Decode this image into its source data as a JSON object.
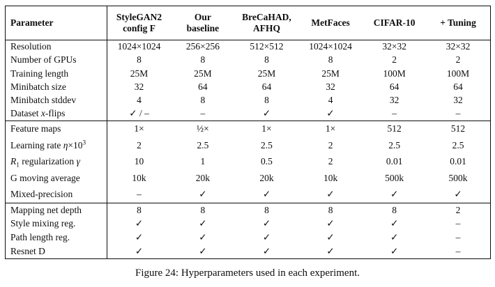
{
  "page": {
    "background": "#ffffff",
    "text_color": "#0d0d0d",
    "rule_color": "#0d0d0d"
  },
  "table": {
    "header": {
      "param_label": "Parameter",
      "columns": [
        "StyleGAN2\nconfig F",
        "Our\nbaseline",
        "BreCaHAD,\nAFHQ",
        "MetFaces",
        "CIFAR-10",
        "+ Tuning"
      ]
    },
    "sections": [
      {
        "rows": [
          {
            "param": "Resolution",
            "values": [
              "1024×1024",
              "256×256",
              "512×512",
              "1024×1024",
              "32×32",
              "32×32"
            ]
          },
          {
            "param": "Number of GPUs",
            "values": [
              "8",
              "8",
              "8",
              "8",
              "2",
              "2"
            ]
          },
          {
            "param": "Training length",
            "values": [
              "25M",
              "25M",
              "25M",
              "25M",
              "100M",
              "100M"
            ]
          },
          {
            "param": "Minibatch size",
            "values": [
              "32",
              "64",
              "64",
              "32",
              "64",
              "64"
            ]
          },
          {
            "param": "Minibatch stddev",
            "values": [
              "4",
              "8",
              "8",
              "4",
              "32",
              "32"
            ]
          },
          {
            "param": "Dataset x-flips",
            "param_parts": [
              {
                "t": "Dataset "
              },
              {
                "t": "x",
                "i": true
              },
              {
                "t": "-flips"
              }
            ],
            "values": [
              "✓ / –",
              "–",
              "✓",
              "✓",
              "–",
              "–"
            ]
          }
        ]
      },
      {
        "rows": [
          {
            "param": "Feature maps",
            "values": [
              "1×",
              "½×",
              "1×",
              "1×",
              "512",
              "512"
            ]
          },
          {
            "param": "Learning rate η×10³",
            "param_parts": [
              {
                "t": "Learning rate "
              },
              {
                "t": "η",
                "i": true
              },
              {
                "t": "×10"
              },
              {
                "t": "3",
                "sup": true
              }
            ],
            "values": [
              "2",
              "2.5",
              "2.5",
              "2",
              "2.5",
              "2.5"
            ]
          },
          {
            "param": "R₁ regularization γ",
            "param_parts": [
              {
                "t": "R",
                "i": true
              },
              {
                "t": "1",
                "sub": true
              },
              {
                "t": " regularization "
              },
              {
                "t": "γ",
                "i": true
              }
            ],
            "values": [
              "10",
              "1",
              "0.5",
              "2",
              "0.01",
              "0.01"
            ]
          },
          {
            "param": "G moving average",
            "values": [
              "10k",
              "20k",
              "20k",
              "10k",
              "500k",
              "500k"
            ]
          },
          {
            "param": "Mixed-precision",
            "values": [
              "–",
              "✓",
              "✓",
              "✓",
              "✓",
              "✓"
            ]
          }
        ]
      },
      {
        "rows": [
          {
            "param": "Mapping net depth",
            "values": [
              "8",
              "8",
              "8",
              "8",
              "8",
              "2"
            ]
          },
          {
            "param": "Style mixing reg.",
            "values": [
              "✓",
              "✓",
              "✓",
              "✓",
              "✓",
              "–"
            ]
          },
          {
            "param": "Path length reg.",
            "values": [
              "✓",
              "✓",
              "✓",
              "✓",
              "✓",
              "–"
            ]
          },
          {
            "param": "Resnet D",
            "values": [
              "✓",
              "✓",
              "✓",
              "✓",
              "✓",
              "–"
            ]
          }
        ]
      }
    ]
  },
  "caption": "Figure 24: Hyperparameters used in each experiment."
}
